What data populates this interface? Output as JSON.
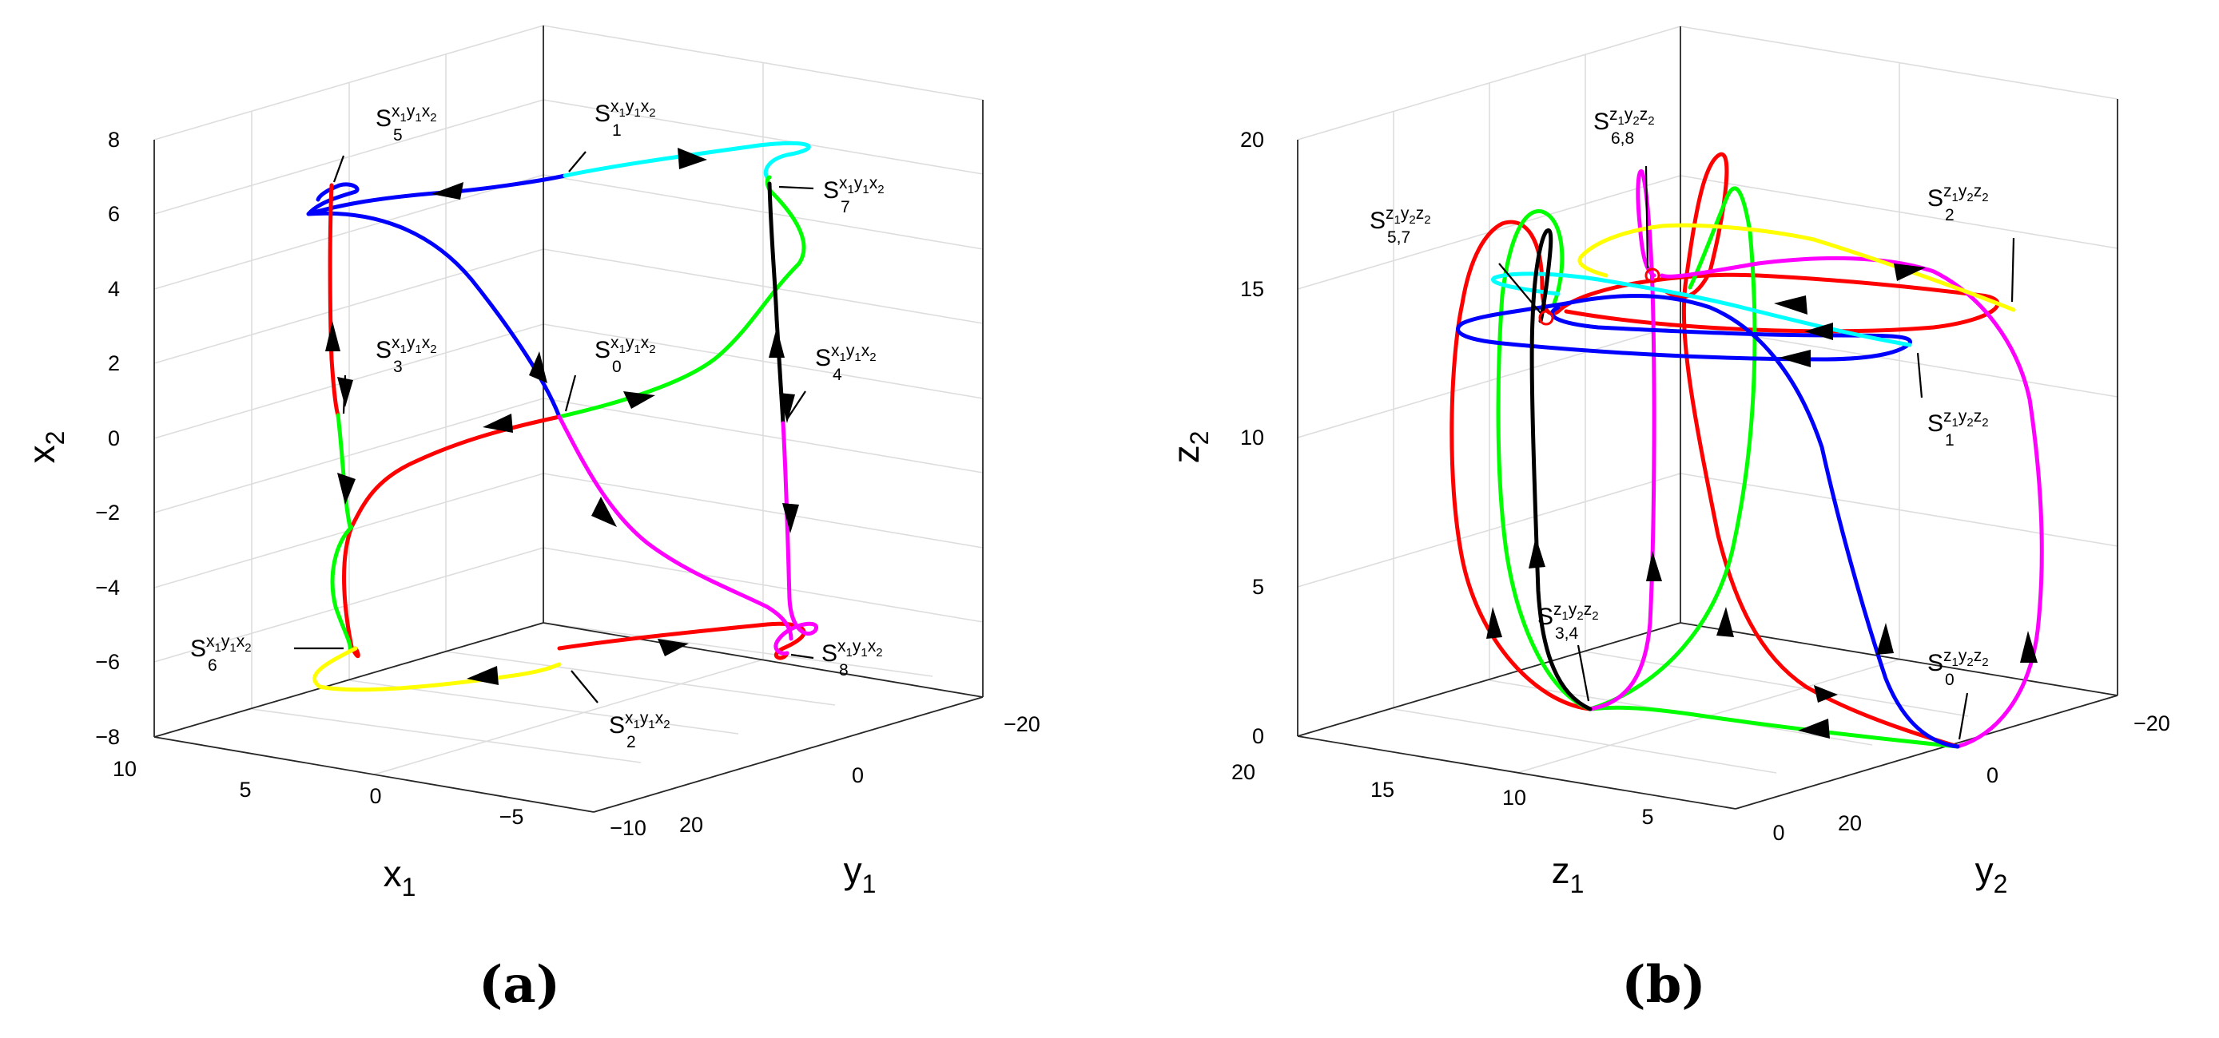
{
  "chart_data": [
    {
      "type": "line",
      "panel_label": "(a)",
      "xlabel": "x",
      "xlabel_sub": "1",
      "ylabel": "y",
      "ylabel_sub": "1",
      "zlabel": "x",
      "zlabel_sub": "2",
      "xlim": [
        -10,
        10
      ],
      "ylim": [
        -20,
        20
      ],
      "zlim": [
        -8,
        8
      ],
      "x_ticks": [
        "10",
        "5",
        "0",
        "−5",
        "−10"
      ],
      "y_ticks": [
        "20",
        "0",
        "−20"
      ],
      "z_ticks": [
        "8",
        "6",
        "4",
        "2",
        "0",
        "−2",
        "−4",
        "−6",
        "−8"
      ],
      "annotations": [
        {
          "base": "S",
          "sup": "x",
          "sup_sub": "1",
          "sup2": "y",
          "sup2_sub": "1",
          "sup3": "x",
          "sup3_sub": "2",
          "sub": "5"
        },
        {
          "base": "S",
          "sup": "x",
          "sup_sub": "1",
          "sup2": "y",
          "sup2_sub": "1",
          "sup3": "x",
          "sup3_sub": "2",
          "sub": "1"
        },
        {
          "base": "S",
          "sup": "x",
          "sup_sub": "1",
          "sup2": "y",
          "sup2_sub": "1",
          "sup3": "x",
          "sup3_sub": "2",
          "sub": "7"
        },
        {
          "base": "S",
          "sup": "x",
          "sup_sub": "1",
          "sup2": "y",
          "sup2_sub": "1",
          "sup3": "x",
          "sup3_sub": "2",
          "sub": "3"
        },
        {
          "base": "S",
          "sup": "x",
          "sup_sub": "1",
          "sup2": "y",
          "sup2_sub": "1",
          "sup3": "x",
          "sup3_sub": "2",
          "sub": "0"
        },
        {
          "base": "S",
          "sup": "x",
          "sup_sub": "1",
          "sup2": "y",
          "sup2_sub": "1",
          "sup3": "x",
          "sup3_sub": "2",
          "sub": "4"
        },
        {
          "base": "S",
          "sup": "x",
          "sup_sub": "1",
          "sup2": "y",
          "sup2_sub": "1",
          "sup3": "x",
          "sup3_sub": "2",
          "sub": "6"
        },
        {
          "base": "S",
          "sup": "x",
          "sup_sub": "1",
          "sup2": "y",
          "sup2_sub": "1",
          "sup3": "x",
          "sup3_sub": "2",
          "sub": "8"
        },
        {
          "base": "S",
          "sup": "x",
          "sup_sub": "1",
          "sup2": "y",
          "sup2_sub": "1",
          "sup3": "x",
          "sup3_sub": "2",
          "sub": "2"
        }
      ],
      "series": [
        {
          "color": "#0000ff"
        },
        {
          "color": "#00ffff"
        },
        {
          "color": "#ff0000"
        },
        {
          "color": "#00ff00"
        },
        {
          "color": "#000000"
        },
        {
          "color": "#ff00ff"
        },
        {
          "color": "#ffff00"
        }
      ]
    },
    {
      "type": "line",
      "panel_label": "(b)",
      "xlabel": "z",
      "xlabel_sub": "1",
      "ylabel": "y",
      "ylabel_sub": "2",
      "zlabel": "z",
      "zlabel_sub": "2",
      "xlim": [
        0,
        20
      ],
      "ylim": [
        -20,
        20
      ],
      "zlim": [
        0,
        20
      ],
      "x_ticks": [
        "20",
        "15",
        "10",
        "5",
        "0"
      ],
      "y_ticks": [
        "20",
        "0",
        "−20"
      ],
      "z_ticks": [
        "20",
        "15",
        "10",
        "5",
        "0"
      ],
      "annotations": [
        {
          "base": "S",
          "sup": "z",
          "sup_sub": "1",
          "sup2": "y",
          "sup2_sub": "2",
          "sup3": "z",
          "sup3_sub": "2",
          "sub": "6,8"
        },
        {
          "base": "S",
          "sup": "z",
          "sup_sub": "1",
          "sup2": "y",
          "sup2_sub": "2",
          "sup3": "z",
          "sup3_sub": "2",
          "sub": "5,7"
        },
        {
          "base": "S",
          "sup": "z",
          "sup_sub": "1",
          "sup2": "y",
          "sup2_sub": "2",
          "sup3": "z",
          "sup3_sub": "2",
          "sub": "2"
        },
        {
          "base": "S",
          "sup": "z",
          "sup_sub": "1",
          "sup2": "y",
          "sup2_sub": "2",
          "sup3": "z",
          "sup3_sub": "2",
          "sub": "1"
        },
        {
          "base": "S",
          "sup": "z",
          "sup_sub": "1",
          "sup2": "y",
          "sup2_sub": "2",
          "sup3": "z",
          "sup3_sub": "2",
          "sub": "3,4"
        },
        {
          "base": "S",
          "sup": "z",
          "sup_sub": "1",
          "sup2": "y",
          "sup2_sub": "2",
          "sup3": "z",
          "sup3_sub": "2",
          "sub": "0"
        }
      ],
      "series": [
        {
          "color": "#ff0000"
        },
        {
          "color": "#00ff00"
        },
        {
          "color": "#ff00ff"
        },
        {
          "color": "#0000ff"
        },
        {
          "color": "#00ffff"
        },
        {
          "color": "#ffff00"
        },
        {
          "color": "#000000"
        }
      ]
    }
  ]
}
